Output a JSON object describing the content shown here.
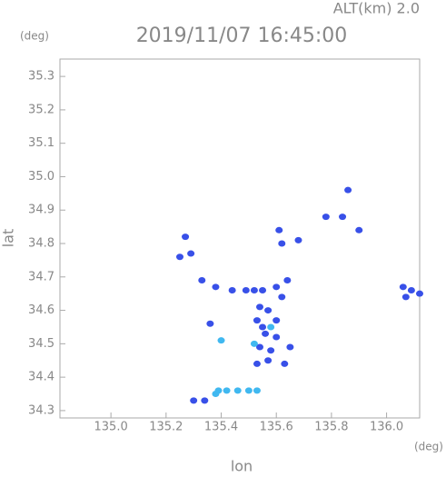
{
  "chart_data": {
    "type": "scatter",
    "title": "2019/11/07 16:45:00",
    "subtitle": "ALT(km) 2.0",
    "y_unit": "(deg)",
    "x_unit": "(deg)",
    "xlabel": "lon",
    "ylabel": "lat",
    "xlim": [
      134.815,
      136.12
    ],
    "ylim": [
      34.278,
      35.352
    ],
    "xticks": [
      {
        "value": 135,
        "label": "135.0"
      },
      135.2,
      135.4,
      135.6,
      135.8,
      {
        "value": 136,
        "label": "136.0"
      }
    ],
    "yticks": [
      34.3,
      34.4,
      34.5,
      34.6,
      34.7,
      34.8,
      34.9,
      {
        "value": 35,
        "label": "35.0"
      },
      35.1,
      35.2,
      35.3
    ],
    "series": [
      {
        "color": "#3850e8",
        "x": [
          135.27,
          135.25,
          135.29,
          135.33,
          135.38,
          135.36,
          135.44,
          135.49,
          135.52,
          135.55,
          135.6,
          135.64,
          135.62,
          135.54,
          135.57,
          135.6,
          135.53,
          135.56,
          135.6,
          135.54,
          135.58,
          135.53,
          135.57,
          135.63,
          135.65,
          135.55,
          135.68,
          135.78,
          135.84,
          135.86,
          135.9,
          136.06,
          136.07,
          136.09,
          136.12,
          135.3,
          135.34,
          135.61,
          135.62
        ],
        "y": [
          34.82,
          34.76,
          34.77,
          34.69,
          34.67,
          34.56,
          34.66,
          34.66,
          34.66,
          34.66,
          34.67,
          34.69,
          34.64,
          34.61,
          34.6,
          34.57,
          34.57,
          34.53,
          34.52,
          34.49,
          34.48,
          34.44,
          34.45,
          34.44,
          34.49,
          34.55,
          34.81,
          34.88,
          34.88,
          34.96,
          34.84,
          34.67,
          34.64,
          34.66,
          34.65,
          34.33,
          34.33,
          34.84,
          34.8
        ]
      },
      {
        "color": "#40b8f0",
        "x": [
          135.38,
          135.42,
          135.46,
          135.5,
          135.53,
          135.4,
          135.52,
          135.58,
          135.39
        ],
        "y": [
          34.35,
          34.36,
          34.36,
          34.36,
          34.36,
          34.51,
          34.5,
          34.55,
          34.36
        ]
      }
    ]
  }
}
